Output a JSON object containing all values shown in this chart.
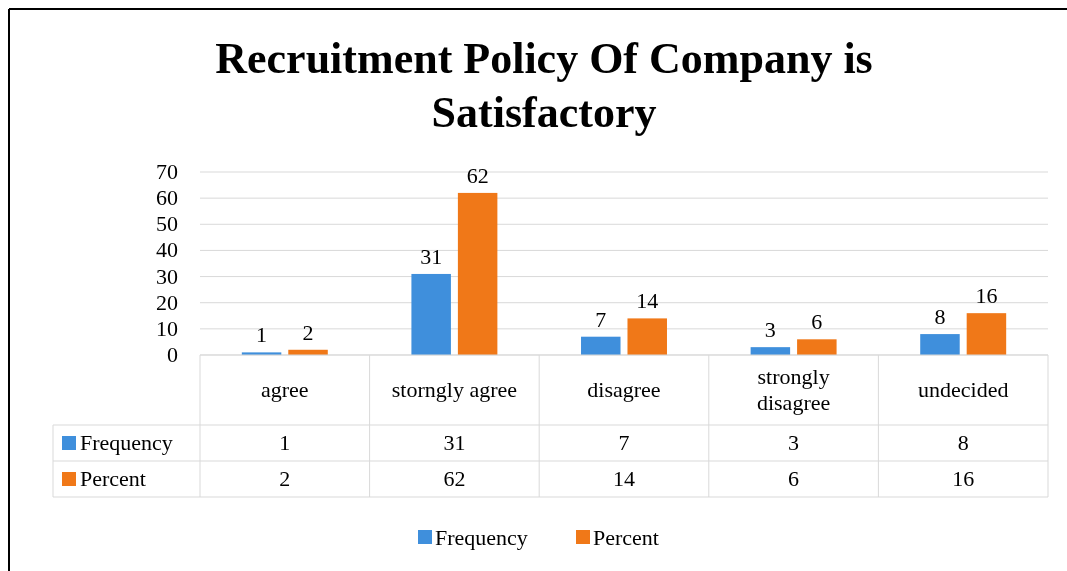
{
  "chart_data": {
    "type": "bar",
    "title": "Recruitment Policy Of Company is Satisfactory",
    "categories": [
      "agree",
      "storngly agree",
      "disagree",
      "strongly disagree",
      "undecided"
    ],
    "series": [
      {
        "name": "Frequency",
        "color": "#3f8fdc",
        "values": [
          1,
          31,
          7,
          3,
          8
        ],
        "value_labels": [
          "1",
          "31",
          "7",
          "3",
          "8"
        ]
      },
      {
        "name": "Percent",
        "color": "#f07818",
        "values": [
          2,
          62,
          14,
          6,
          16
        ],
        "value_labels": [
          "2",
          "62",
          "14",
          "6",
          "16"
        ]
      }
    ],
    "annotations": [
      "1",
      "31",
      "7",
      "3",
      "8",
      "2",
      "62",
      "14",
      "6",
      "16"
    ],
    "ylim": [
      0,
      70
    ],
    "yticks": [
      0,
      10,
      20,
      30,
      40,
      50,
      60,
      70
    ],
    "grid": "y",
    "legend": "bottom"
  }
}
